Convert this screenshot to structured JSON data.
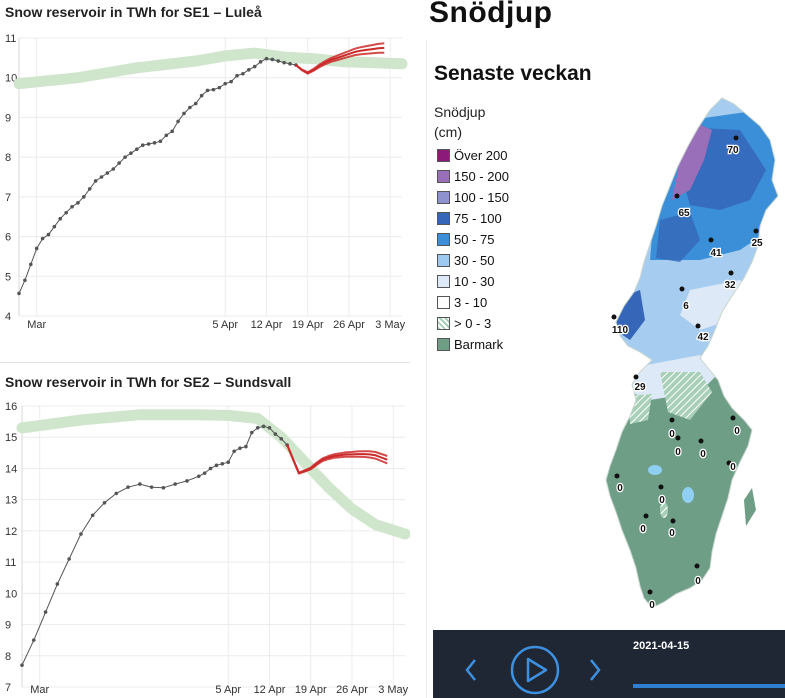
{
  "chart_data": [
    {
      "type": "line",
      "title": "Snow reservoir in TWh for SE1 – Luleå",
      "x_tick_labels": [
        "Mar",
        "5 Apr",
        "12 Apr",
        "19 Apr",
        "26 Apr",
        "3 May"
      ],
      "y_ticks": [
        4,
        5,
        6,
        7,
        8,
        9,
        10,
        11
      ],
      "ylim": [
        4,
        11
      ],
      "grid": true,
      "series": [
        {
          "role": "normal_band",
          "color": "#cfe6cc",
          "x": [
            -30,
            -20,
            -10,
            0,
            5,
            10,
            15,
            20,
            25,
            30,
            35
          ],
          "y": [
            9.85,
            10.0,
            10.25,
            10.42,
            10.55,
            10.62,
            10.52,
            10.48,
            10.4,
            10.38,
            10.35
          ]
        },
        {
          "role": "observed",
          "color": "#555555",
          "x": [
            -30,
            -29,
            -28,
            -27,
            -26,
            -25,
            -24,
            -23,
            -22,
            -21,
            -20,
            -19,
            -18,
            -17,
            -16,
            -15,
            -14,
            -13,
            -12,
            -11,
            -10,
            -9,
            -8,
            -7,
            -6,
            -5,
            -4,
            -3,
            -2,
            -1,
            0,
            1,
            2,
            3,
            4,
            5,
            6,
            7,
            8,
            9,
            10,
            11,
            12,
            13,
            14,
            15,
            16,
            17
          ],
          "y": [
            4.57,
            4.9,
            5.3,
            5.7,
            5.95,
            6.05,
            6.25,
            6.45,
            6.6,
            6.75,
            6.85,
            7.0,
            7.2,
            7.4,
            7.5,
            7.6,
            7.7,
            7.85,
            8.0,
            8.1,
            8.2,
            8.3,
            8.33,
            8.36,
            8.4,
            8.55,
            8.65,
            8.9,
            9.1,
            9.25,
            9.35,
            9.55,
            9.68,
            9.7,
            9.75,
            9.85,
            9.9,
            10.05,
            10.1,
            10.2,
            10.28,
            10.4,
            10.48,
            10.46,
            10.42,
            10.38,
            10.35,
            10.32
          ]
        },
        {
          "role": "forecast",
          "color": "#cc2a2a",
          "x": [
            17,
            18,
            19,
            20,
            21,
            22,
            23,
            24,
            25,
            26,
            27,
            28,
            29,
            30,
            31,
            32
          ],
          "y": [
            10.32,
            10.2,
            10.12,
            10.2,
            10.3,
            10.38,
            10.45,
            10.5,
            10.55,
            10.6,
            10.65,
            10.68,
            10.7,
            10.72,
            10.74,
            10.75
          ]
        }
      ]
    },
    {
      "type": "line",
      "title": "Snow reservoir in TWh for SE2 – Sundsvall",
      "x_tick_labels": [
        "Mar",
        "5 Apr",
        "12 Apr",
        "19 Apr",
        "26 Apr",
        "3 May"
      ],
      "y_ticks": [
        7,
        8,
        9,
        10,
        11,
        12,
        13,
        14,
        15,
        16
      ],
      "ylim": [
        7,
        16
      ],
      "grid": true,
      "series": [
        {
          "role": "normal_band",
          "color": "#cfe6cc",
          "x": [
            -30,
            -20,
            -10,
            0,
            5,
            10,
            14,
            18,
            22,
            26,
            30,
            35
          ],
          "y": [
            15.3,
            15.55,
            15.72,
            15.72,
            15.7,
            15.6,
            15.0,
            14.2,
            13.4,
            12.7,
            12.2,
            11.9
          ]
        },
        {
          "role": "observed",
          "color": "#555555",
          "x": [
            -30,
            -28,
            -26,
            -24,
            -22,
            -20,
            -18,
            -16,
            -14,
            -12,
            -10,
            -8,
            -6,
            -4,
            -2,
            0,
            1,
            2,
            3,
            4,
            5,
            6,
            7,
            8,
            9,
            10,
            11,
            12,
            13,
            14,
            15
          ],
          "y": [
            7.7,
            8.5,
            9.4,
            10.3,
            11.1,
            11.9,
            12.5,
            12.9,
            13.2,
            13.4,
            13.5,
            13.4,
            13.38,
            13.5,
            13.6,
            13.75,
            13.85,
            14.0,
            14.1,
            14.15,
            14.2,
            14.55,
            14.65,
            14.7,
            15.15,
            15.3,
            15.35,
            15.3,
            15.1,
            14.95,
            14.75
          ]
        },
        {
          "role": "forecast",
          "color": "#cc2a2a",
          "x": [
            15,
            16,
            17,
            18,
            19,
            20,
            21,
            22,
            23,
            24,
            25,
            26,
            27,
            28,
            29,
            30,
            31,
            32
          ],
          "y": [
            14.75,
            14.3,
            13.85,
            13.92,
            14.0,
            14.15,
            14.28,
            14.35,
            14.4,
            14.42,
            14.45,
            14.45,
            14.46,
            14.46,
            14.45,
            14.42,
            14.35,
            14.28
          ]
        }
      ]
    }
  ],
  "map": {
    "header": "Snödjup",
    "subheader": "Senaste veckan",
    "legend_title": "Snödjup (cm)",
    "legend": [
      {
        "label": "Över 200",
        "color": "#8b1a7a"
      },
      {
        "label": "150 - 200",
        "color": "#9a6fba"
      },
      {
        "label": "100 - 150",
        "color": "#8e93cf"
      },
      {
        "label": "75 - 100",
        "color": "#3566b8"
      },
      {
        "label": "50 - 75",
        "color": "#3a8fd8"
      },
      {
        "label": "30 - 50",
        "color": "#9ccaf0"
      },
      {
        "label": "10 - 30",
        "color": "#dde9f7"
      },
      {
        "label": "3 - 10",
        "color": "#ffffff"
      },
      {
        "label": "> 0 - 3",
        "color": "#a8cfb7"
      },
      {
        "label": "Barmark",
        "color": "#6f9e86"
      }
    ],
    "stations": [
      {
        "label": "70"
      },
      {
        "label": "65"
      },
      {
        "label": "25"
      },
      {
        "label": "41"
      },
      {
        "label": "32"
      },
      {
        "label": "6"
      },
      {
        "label": "110"
      },
      {
        "label": "42"
      },
      {
        "label": "29"
      },
      {
        "label": "0"
      },
      {
        "label": "0"
      },
      {
        "label": "0"
      },
      {
        "label": "0"
      },
      {
        "label": "0"
      },
      {
        "label": "0"
      },
      {
        "label": "0"
      },
      {
        "label": "0"
      },
      {
        "label": "0"
      },
      {
        "label": "0"
      },
      {
        "label": "0"
      }
    ]
  },
  "player": {
    "date": "2021-04-15"
  }
}
